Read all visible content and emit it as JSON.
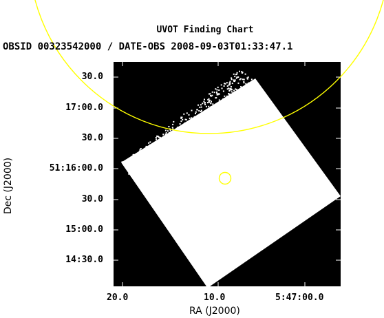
{
  "chart": {
    "title": "UVOT Finding Chart",
    "subtitle": "OBSID 00323542000 / DATE-OBS 2008-09-03T01:33:47.1",
    "xlabel": "RA (J2000)",
    "ylabel": "Dec (J2000)"
  },
  "chart_data": {
    "type": "scatter",
    "title": "UVOT Finding Chart",
    "subtitle": "OBSID 00323542000 / DATE-OBS 2008-09-03T01:33:47.1",
    "xlabel": "RA (J2000)",
    "ylabel": "Dec (J2000)",
    "x_ticks": [
      "20.0",
      "10.0",
      "5:47:00.0"
    ],
    "y_ticks": [
      "30.0",
      "17:00.0",
      "30.0",
      "51:16:00.0",
      "30.0",
      "15:00.0",
      "14:30.0"
    ],
    "colors": {
      "background": "#000000",
      "exposure": "#ffffff",
      "circles": "#ffff00"
    }
  }
}
